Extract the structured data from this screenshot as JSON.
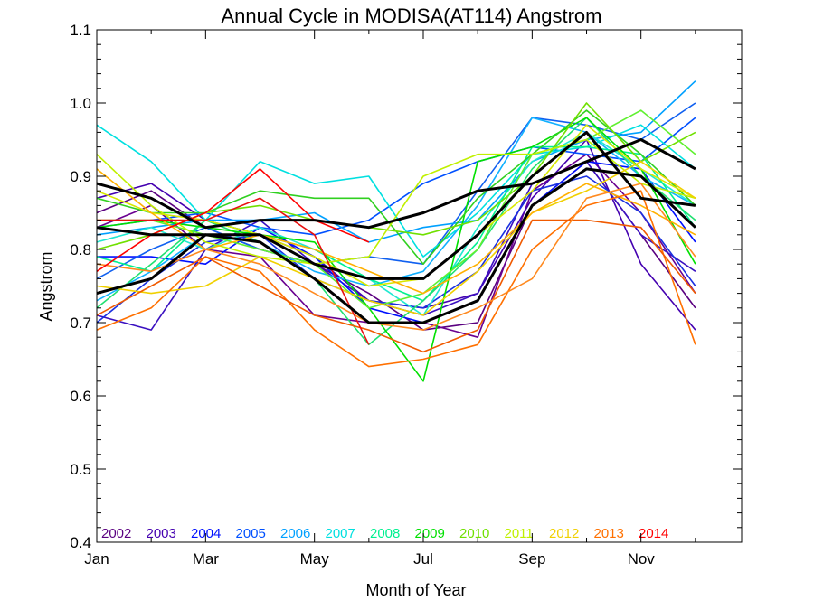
{
  "chart_data": {
    "type": "line",
    "title": "Annual Cycle in MODISA(AT114) Angstrom",
    "xlabel": "Month of Year",
    "ylabel": "Angstrom",
    "xlim": [
      1,
      12.85
    ],
    "ylim": [
      0.4,
      1.1
    ],
    "x_ticks": [
      {
        "value": 1,
        "label": "Jan"
      },
      {
        "value": 3,
        "label": "Mar"
      },
      {
        "value": 5,
        "label": "May"
      },
      {
        "value": 7,
        "label": "Jul"
      },
      {
        "value": 9,
        "label": "Sep"
      },
      {
        "value": 11,
        "label": "Nov"
      }
    ],
    "y_ticks": [
      {
        "value": 0.4,
        "label": "0.4"
      },
      {
        "value": 0.5,
        "label": "0.5"
      },
      {
        "value": 0.6,
        "label": "0.6"
      },
      {
        "value": 0.7,
        "label": "0.7"
      },
      {
        "value": 0.8,
        "label": "0.8"
      },
      {
        "value": 0.9,
        "label": "0.9"
      },
      {
        "value": 1.0,
        "label": "1.0"
      },
      {
        "value": 1.1,
        "label": "1.1"
      }
    ],
    "grid": false,
    "legend_position": "bottom-left",
    "x": [
      1,
      2,
      3,
      4,
      5,
      6,
      7,
      8,
      9,
      10,
      11,
      12
    ],
    "series": [
      {
        "name": "2002",
        "color": "#5a0080",
        "values": [
          0.85,
          0.88,
          0.83,
          0.8,
          0.78,
          0.74,
          0.69,
          0.7,
          0.86,
          0.92,
          0.82,
          0.72
        ]
      },
      {
        "name": "2002",
        "color": "#6a0090",
        "values": [
          0.83,
          0.86,
          0.8,
          0.79,
          0.71,
          0.7,
          0.7,
          0.68,
          0.88,
          0.93,
          0.85,
          0.74
        ]
      },
      {
        "name": "2003",
        "color": "#4400b0",
        "values": [
          0.87,
          0.89,
          0.84,
          0.82,
          0.79,
          0.73,
          0.72,
          0.74,
          0.87,
          0.95,
          0.78,
          0.69
        ]
      },
      {
        "name": "2003",
        "color": "#3a10c0",
        "values": [
          0.71,
          0.69,
          0.8,
          0.84,
          0.78,
          0.73,
          0.71,
          0.74,
          0.89,
          0.92,
          0.82,
          0.77
        ]
      },
      {
        "name": "2004",
        "color": "#0010ff",
        "values": [
          0.79,
          0.79,
          0.78,
          0.83,
          0.79,
          0.72,
          0.7,
          0.73,
          0.86,
          0.92,
          0.91,
          0.81
        ]
      },
      {
        "name": "2004",
        "color": "#1a30e0",
        "values": [
          0.7,
          0.76,
          0.81,
          0.82,
          0.76,
          0.73,
          0.72,
          0.77,
          0.88,
          0.9,
          0.85,
          0.75
        ]
      },
      {
        "name": "2005",
        "color": "#0050ff",
        "values": [
          0.83,
          0.84,
          0.85,
          0.83,
          0.82,
          0.84,
          0.89,
          0.92,
          0.94,
          0.93,
          0.92,
          0.98
        ]
      },
      {
        "name": "2005",
        "color": "#1060f0",
        "values": [
          0.76,
          0.8,
          0.83,
          0.8,
          0.78,
          0.79,
          0.78,
          0.88,
          0.98,
          0.97,
          0.95,
          1.0
        ]
      },
      {
        "name": "2006",
        "color": "#00a0ff",
        "values": [
          0.82,
          0.83,
          0.84,
          0.84,
          0.85,
          0.81,
          0.83,
          0.84,
          0.92,
          0.95,
          0.96,
          1.03
        ]
      },
      {
        "name": "2006",
        "color": "#10b0ff",
        "values": [
          0.73,
          0.77,
          0.82,
          0.81,
          0.77,
          0.75,
          0.77,
          0.86,
          0.98,
          0.96,
          0.9,
          0.86
        ]
      },
      {
        "name": "2007",
        "color": "#00e0e0",
        "values": [
          0.97,
          0.92,
          0.84,
          0.92,
          0.89,
          0.9,
          0.79,
          0.85,
          0.93,
          0.94,
          0.97,
          0.91
        ]
      },
      {
        "name": "2007",
        "color": "#20e8d0",
        "values": [
          0.81,
          0.83,
          0.8,
          0.83,
          0.8,
          0.76,
          0.71,
          0.83,
          0.92,
          0.96,
          0.91,
          0.86
        ]
      },
      {
        "name": "2008",
        "color": "#00f090",
        "values": [
          0.79,
          0.77,
          0.84,
          0.82,
          0.8,
          0.76,
          0.73,
          0.81,
          0.94,
          0.94,
          0.93,
          0.83
        ]
      },
      {
        "name": "2008",
        "color": "#20e070",
        "values": [
          0.72,
          0.78,
          0.84,
          0.81,
          0.76,
          0.67,
          0.73,
          0.8,
          0.91,
          0.98,
          0.9,
          0.84
        ]
      },
      {
        "name": "2009",
        "color": "#00e000",
        "values": [
          0.83,
          0.84,
          0.83,
          0.82,
          0.81,
          0.72,
          0.62,
          0.92,
          0.94,
          0.98,
          0.91,
          0.78
        ]
      },
      {
        "name": "2009",
        "color": "#30d020",
        "values": [
          0.87,
          0.85,
          0.85,
          0.88,
          0.87,
          0.87,
          0.78,
          0.87,
          0.93,
          0.99,
          0.93,
          0.86
        ]
      },
      {
        "name": "2010",
        "color": "#70e000",
        "values": [
          0.8,
          0.82,
          0.85,
          0.86,
          0.84,
          0.83,
          0.82,
          0.84,
          0.9,
          1.0,
          0.92,
          0.96
        ]
      },
      {
        "name": "2010",
        "color": "#60f030",
        "values": [
          0.84,
          0.84,
          0.82,
          0.8,
          0.78,
          0.72,
          0.74,
          0.8,
          0.93,
          0.95,
          0.99,
          0.93
        ]
      },
      {
        "name": "2011",
        "color": "#c0f000",
        "values": [
          0.93,
          0.86,
          0.81,
          0.79,
          0.78,
          0.79,
          0.9,
          0.93,
          0.93,
          0.95,
          0.89,
          0.87
        ]
      },
      {
        "name": "2011",
        "color": "#d8e800",
        "values": [
          0.88,
          0.85,
          0.84,
          0.82,
          0.79,
          0.75,
          0.76,
          0.82,
          0.88,
          0.97,
          0.91,
          0.87
        ]
      },
      {
        "name": "2012",
        "color": "#f0d000",
        "values": [
          0.75,
          0.74,
          0.75,
          0.79,
          0.76,
          0.73,
          0.71,
          0.77,
          0.85,
          0.88,
          0.92,
          0.87
        ]
      },
      {
        "name": "2012",
        "color": "#ffb000",
        "values": [
          0.91,
          0.85,
          0.8,
          0.82,
          0.8,
          0.77,
          0.74,
          0.78,
          0.85,
          0.89,
          0.86,
          0.82
        ]
      },
      {
        "name": "2013",
        "color": "#ff7000",
        "values": [
          0.69,
          0.72,
          0.79,
          0.77,
          0.69,
          0.64,
          0.65,
          0.67,
          0.8,
          0.86,
          0.88,
          0.67
        ]
      },
      {
        "name": "2013",
        "color": "#f05a00",
        "values": [
          0.71,
          0.75,
          0.79,
          0.75,
          0.71,
          0.69,
          0.66,
          0.69,
          0.84,
          0.84,
          0.83,
          0.74
        ]
      },
      {
        "name": "2013",
        "color": "#ff8a20",
        "values": [
          0.78,
          0.77,
          0.8,
          0.78,
          0.74,
          0.7,
          0.69,
          0.72,
          0.76,
          0.87,
          0.89,
          0.79
        ]
      },
      {
        "name": "2014",
        "color": "#ff0000",
        "values": [
          0.77,
          0.82,
          0.85,
          0.91,
          0.84,
          0.81,
          null,
          null,
          null,
          null,
          null,
          null
        ]
      },
      {
        "name": "2014",
        "color": "#e81010",
        "values": [
          0.84,
          0.84,
          0.84,
          0.87,
          0.82,
          0.67,
          null,
          null,
          null,
          null,
          null,
          null
        ]
      },
      {
        "name": "",
        "color": "#000000",
        "values": [
          0.89,
          0.87,
          0.83,
          0.84,
          0.84,
          0.83,
          0.85,
          0.88,
          0.89,
          0.92,
          0.95,
          0.91
        ]
      },
      {
        "name": "",
        "color": "#000000",
        "values": [
          0.74,
          0.76,
          0.82,
          0.82,
          0.78,
          0.76,
          0.76,
          0.82,
          0.9,
          0.96,
          0.87,
          0.86
        ]
      },
      {
        "name": "",
        "color": "#000000",
        "values": [
          0.83,
          0.82,
          0.82,
          0.81,
          0.76,
          0.7,
          0.7,
          0.73,
          0.86,
          0.91,
          0.9,
          0.83
        ]
      }
    ],
    "legend_items": [
      {
        "label": "2002",
        "color": "#5a0080"
      },
      {
        "label": "2003",
        "color": "#4400b0"
      },
      {
        "label": "2004",
        "color": "#0010ff"
      },
      {
        "label": "2005",
        "color": "#0050ff"
      },
      {
        "label": "2006",
        "color": "#00a0ff"
      },
      {
        "label": "2007",
        "color": "#00e0e0"
      },
      {
        "label": "2008",
        "color": "#00f090"
      },
      {
        "label": "2009",
        "color": "#00e000"
      },
      {
        "label": "2010",
        "color": "#70e000"
      },
      {
        "label": "2011",
        "color": "#c0f000"
      },
      {
        "label": "2012",
        "color": "#f0d000"
      },
      {
        "label": "2013",
        "color": "#ff7000"
      },
      {
        "label": "2014",
        "color": "#ff0000"
      }
    ]
  }
}
